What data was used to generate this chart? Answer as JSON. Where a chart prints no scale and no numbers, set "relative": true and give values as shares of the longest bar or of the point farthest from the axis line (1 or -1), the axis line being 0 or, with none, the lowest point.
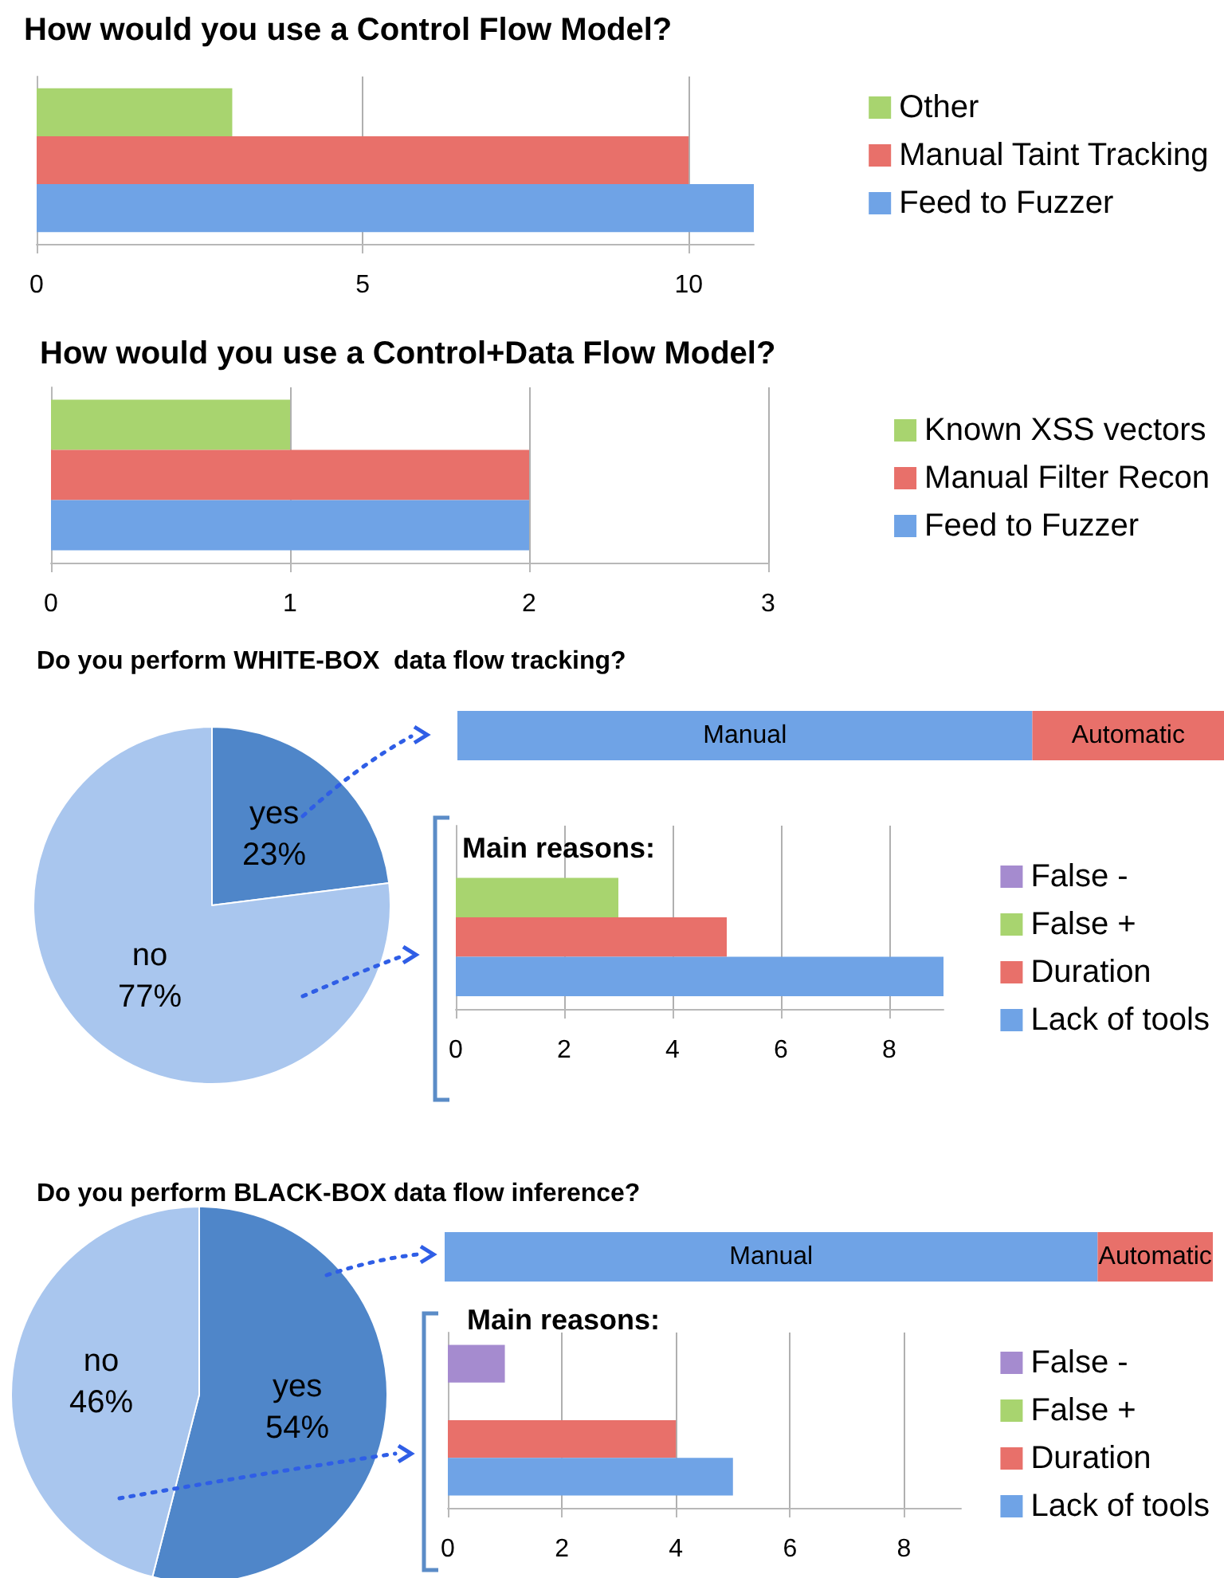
{
  "chart_data": [
    {
      "type": "bar",
      "title": "How would you use a Control Flow Model?",
      "orientation": "horizontal",
      "categories": [
        null
      ],
      "series": [
        {
          "name": "Other",
          "color": "#a8d46f",
          "values": [
            3
          ]
        },
        {
          "name": "Manual Taint Tracking",
          "color": "#e8706a",
          "values": [
            10
          ]
        },
        {
          "name": "Feed to Fuzzer",
          "color": "#6fa3e6",
          "values": [
            11
          ]
        }
      ],
      "xlim": [
        0,
        11
      ],
      "xticks": [
        0,
        5,
        10
      ],
      "grid": "x",
      "legend": "right"
    },
    {
      "type": "bar",
      "title": "How would you use a Control+Data Flow Model?",
      "orientation": "horizontal",
      "categories": [
        null
      ],
      "series": [
        {
          "name": "Known XSS vectors",
          "color": "#a8d46f",
          "values": [
            1
          ]
        },
        {
          "name": "Manual Filter Recon",
          "color": "#e8706a",
          "values": [
            2
          ]
        },
        {
          "name": "Feed to Fuzzer",
          "color": "#6fa3e6",
          "values": [
            2
          ]
        }
      ],
      "xlim": [
        0,
        3
      ],
      "xticks": [
        0,
        1,
        2,
        3
      ],
      "grid": "x",
      "legend": "right"
    },
    {
      "type": "pie",
      "title": "Do you perform WHITE-BOX  data flow tracking?",
      "categories": [
        "yes",
        "no"
      ],
      "values": [
        23,
        77
      ],
      "value_labels": [
        "23%",
        "77%"
      ],
      "colors": [
        "#4f86c9",
        "#a9c6ee"
      ]
    },
    {
      "type": "bar",
      "orientation": "horizontal",
      "stacked": true,
      "relative": true,
      "categories": [
        null
      ],
      "series": [
        {
          "name": "Manual",
          "color": "#6fa3e6",
          "values": [
            0.75
          ]
        },
        {
          "name": "Automatic",
          "color": "#e8706a",
          "values": [
            0.25
          ]
        }
      ]
    },
    {
      "type": "bar",
      "title": "Main reasons:",
      "orientation": "horizontal",
      "categories": [
        null
      ],
      "series": [
        {
          "name": "False -",
          "color": "#a58bcf",
          "values": [
            0
          ]
        },
        {
          "name": "False +",
          "color": "#a8d46f",
          "values": [
            3
          ]
        },
        {
          "name": "Duration",
          "color": "#e8706a",
          "values": [
            5
          ]
        },
        {
          "name": "Lack of tools",
          "color": "#6fa3e6",
          "values": [
            9
          ]
        }
      ],
      "xlim": [
        0,
        9
      ],
      "xticks": [
        0,
        2,
        4,
        6,
        8
      ],
      "grid": "x",
      "legend": "right"
    },
    {
      "type": "pie",
      "title": "Do you perform BLACK-BOX data flow inference?",
      "categories": [
        "yes",
        "no"
      ],
      "values": [
        54,
        46
      ],
      "value_labels": [
        "54%",
        "46%"
      ],
      "colors": [
        "#4f86c9",
        "#a9c6ee"
      ]
    },
    {
      "type": "bar",
      "orientation": "horizontal",
      "stacked": true,
      "relative": true,
      "categories": [
        null
      ],
      "series": [
        {
          "name": "Manual",
          "color": "#6fa3e6",
          "values": [
            0.85
          ]
        },
        {
          "name": "Automatic",
          "color": "#e8706a",
          "values": [
            0.15
          ]
        }
      ]
    },
    {
      "type": "bar",
      "title": "Main reasons:",
      "orientation": "horizontal",
      "categories": [
        null
      ],
      "series": [
        {
          "name": "False -",
          "color": "#a58bcf",
          "values": [
            1
          ]
        },
        {
          "name": "False +",
          "color": "#a8d46f",
          "values": [
            0
          ]
        },
        {
          "name": "Duration",
          "color": "#e8706a",
          "values": [
            4
          ]
        },
        {
          "name": "Lack of tools",
          "color": "#6fa3e6",
          "values": [
            5
          ]
        }
      ],
      "xlim": [
        0,
        9
      ],
      "xticks": [
        0,
        2,
        4,
        6,
        8
      ],
      "grid": "x",
      "legend": "right"
    }
  ]
}
